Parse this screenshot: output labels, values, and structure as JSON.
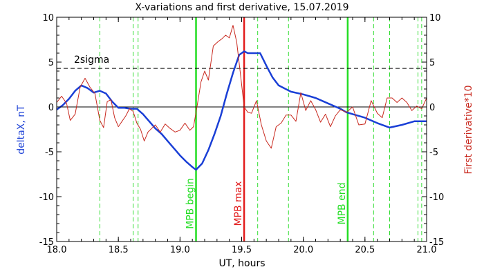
{
  "chart_data": {
    "type": "line",
    "title": "X-variations and first derivative, 15.07.2019",
    "xlabel": "UT, hours",
    "ylabel_left": "deltaX, nT",
    "ylabel_right": "First derivative*10",
    "xlim": [
      18.0,
      21.0
    ],
    "ylim": [
      -15,
      10
    ],
    "x_ticks": [
      "18.0",
      "18.5",
      "19.0",
      "19.5",
      "20.0",
      "20.5",
      "21.0"
    ],
    "y_ticks": [
      "-15",
      "-10",
      "-5",
      "0",
      "5",
      "10"
    ],
    "threshold": {
      "label": "2sigma",
      "value": 4.3,
      "style": "dashed"
    },
    "zero_line": 0,
    "series": [
      {
        "name": "deltaX",
        "color": "#1a3fd6",
        "x": [
          18.0,
          18.05,
          18.1,
          18.15,
          18.2,
          18.25,
          18.3,
          18.35,
          18.4,
          18.45,
          18.5,
          18.55,
          18.6,
          18.65,
          18.7,
          18.75,
          18.8,
          18.85,
          18.9,
          18.95,
          19.0,
          19.05,
          19.1,
          19.13,
          19.18,
          19.23,
          19.28,
          19.33,
          19.38,
          19.43,
          19.48,
          19.52,
          19.55,
          19.6,
          19.65,
          19.7,
          19.75,
          19.8,
          19.9,
          20.0,
          20.1,
          20.2,
          20.3,
          20.35,
          20.4,
          20.5,
          20.6,
          20.7,
          20.8,
          20.9,
          21.0
        ],
        "y": [
          -0.3,
          0.2,
          0.9,
          1.8,
          2.4,
          2.1,
          1.6,
          1.8,
          1.5,
          0.6,
          -0.1,
          -0.1,
          -0.2,
          -0.2,
          -0.8,
          -1.6,
          -2.4,
          -3.0,
          -3.8,
          -4.6,
          -5.4,
          -6.1,
          -6.7,
          -7.0,
          -6.3,
          -4.8,
          -3.0,
          -1.0,
          1.5,
          3.8,
          5.8,
          6.2,
          6.0,
          6.0,
          6.0,
          4.6,
          3.3,
          2.4,
          1.7,
          1.4,
          1.0,
          0.4,
          -0.2,
          -0.6,
          -0.8,
          -1.2,
          -1.8,
          -2.3,
          -2.0,
          -1.6,
          -1.6
        ]
      },
      {
        "name": "First derivative*10",
        "color": "#c8281e",
        "x": [
          18.0,
          18.04,
          18.08,
          18.11,
          18.15,
          18.19,
          18.23,
          18.27,
          18.31,
          18.35,
          18.38,
          18.41,
          18.44,
          18.47,
          18.5,
          18.53,
          18.56,
          18.59,
          18.62,
          18.65,
          18.68,
          18.71,
          18.74,
          18.77,
          18.8,
          18.84,
          18.88,
          18.92,
          18.96,
          19.0,
          19.04,
          19.08,
          19.11,
          19.14,
          19.17,
          19.2,
          19.23,
          19.27,
          19.31,
          19.34,
          19.37,
          19.4,
          19.43,
          19.46,
          19.49,
          19.52,
          19.55,
          19.58,
          19.62,
          19.66,
          19.7,
          19.74,
          19.78,
          19.82,
          19.86,
          19.9,
          19.94,
          19.98,
          20.02,
          20.06,
          20.1,
          20.14,
          20.18,
          20.22,
          20.26,
          20.3,
          20.35,
          20.4,
          20.45,
          20.5,
          20.55,
          20.6,
          20.64,
          20.68,
          20.72,
          20.76,
          20.8,
          20.84,
          20.88,
          20.92,
          20.96,
          21.0
        ],
        "y": [
          0.5,
          1.2,
          0.4,
          -1.5,
          -0.8,
          2.2,
          3.2,
          2.2,
          1.5,
          -1.5,
          -2.3,
          0.6,
          0.8,
          -1.2,
          -2.2,
          -1.6,
          -1.0,
          -0.2,
          -0.5,
          -1.8,
          -2.5,
          -3.8,
          -2.8,
          -2.4,
          -2.0,
          -2.8,
          -1.9,
          -2.4,
          -2.8,
          -2.6,
          -1.8,
          -2.6,
          -2.2,
          0.2,
          2.8,
          4.0,
          3.0,
          6.8,
          7.3,
          7.6,
          8.0,
          7.7,
          9.1,
          7.2,
          3.7,
          0.0,
          -0.6,
          -0.7,
          0.7,
          -2.0,
          -3.8,
          -4.6,
          -2.2,
          -1.8,
          -0.9,
          -0.9,
          -1.6,
          1.6,
          -0.4,
          0.7,
          -0.3,
          -1.7,
          -0.8,
          -2.2,
          -1.0,
          -0.3,
          -0.6,
          0.0,
          -2.0,
          -1.9,
          0.7,
          -0.7,
          -1.2,
          1.0,
          1.0,
          0.5,
          1.0,
          0.5,
          -0.4,
          0.1,
          -0.2,
          1.0
        ]
      }
    ],
    "vlines": {
      "solid": [
        {
          "x": 19.13,
          "label": "MPB begin",
          "color": "#22dd22"
        },
        {
          "x": 19.52,
          "label": "MPB max",
          "color": "#e21b1b"
        },
        {
          "x": 20.36,
          "label": "MPB end",
          "color": "#22dd22"
        }
      ],
      "dashed": [
        18.35,
        18.62,
        18.66,
        19.63,
        19.88,
        20.57,
        20.7,
        20.93,
        20.96
      ],
      "dashed_color": "#33dd33"
    }
  }
}
